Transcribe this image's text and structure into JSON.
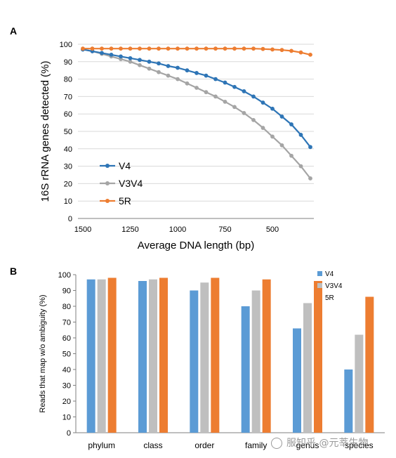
{
  "figure": {
    "panel_a_label": "A",
    "panel_b_label": "B",
    "watermark": "服知乎 @元莘生物"
  },
  "chart_data": [
    {
      "panel": "A",
      "type": "line",
      "title": "",
      "xlabel": "Average DNA length (bp)",
      "ylabel": "16S rRNA genes detected (%)",
      "x": [
        1500,
        1450,
        1400,
        1350,
        1300,
        1250,
        1200,
        1150,
        1100,
        1050,
        1000,
        950,
        900,
        850,
        800,
        750,
        700,
        650,
        600,
        550,
        500,
        450,
        400,
        350,
        300
      ],
      "xticks": [
        1500,
        1250,
        1000,
        750,
        500
      ],
      "xlim": [
        1500,
        300
      ],
      "x_reversed": true,
      "ylim": [
        0,
        100
      ],
      "yticks": [
        0,
        10,
        20,
        30,
        40,
        50,
        60,
        70,
        80,
        90,
        100
      ],
      "grid": true,
      "legend": "left",
      "series": [
        {
          "name": "V4",
          "color": "#2e75b6",
          "values": [
            97,
            96,
            95,
            94,
            93,
            92,
            91,
            90,
            89,
            87.5,
            86.5,
            85,
            83.5,
            82,
            80,
            78,
            75.5,
            73,
            70,
            66.5,
            63,
            58.5,
            54,
            48,
            41
          ]
        },
        {
          "name": "V3V4",
          "color": "#a5a5a5",
          "values": [
            97,
            96,
            94.5,
            93,
            91.5,
            90,
            88,
            86,
            84,
            82,
            80,
            77.5,
            75,
            72.5,
            70,
            67,
            64,
            60.5,
            56.5,
            52,
            47,
            42,
            36,
            30,
            23
          ]
        },
        {
          "name": "5R",
          "color": "#ed7d31",
          "values": [
            97.5,
            97.5,
            97.5,
            97.5,
            97.5,
            97.5,
            97.5,
            97.5,
            97.5,
            97.5,
            97.5,
            97.5,
            97.5,
            97.5,
            97.5,
            97.5,
            97.5,
            97.5,
            97.5,
            97.3,
            97,
            96.7,
            96.2,
            95.3,
            94
          ]
        }
      ]
    },
    {
      "panel": "B",
      "type": "bar",
      "title": "",
      "xlabel": "",
      "ylabel": "Reads that map w/o ambiguity (%)",
      "categories": [
        "phylum",
        "class",
        "order",
        "family",
        "genus",
        "species"
      ],
      "ylim": [
        0,
        100
      ],
      "yticks": [
        0,
        10,
        20,
        30,
        40,
        50,
        60,
        70,
        80,
        90,
        100
      ],
      "grid": false,
      "legend": "top-right",
      "series": [
        {
          "name": "V4",
          "color": "#5b9bd5",
          "values": [
            97,
            96,
            90,
            80,
            66,
            40
          ]
        },
        {
          "name": "V3V4",
          "color": "#bfbfbf",
          "values": [
            97,
            97,
            95,
            90,
            82,
            62
          ]
        },
        {
          "name": "5R",
          "color": "#ed7d31",
          "values": [
            98,
            98,
            98,
            97,
            96,
            86
          ]
        }
      ]
    }
  ]
}
